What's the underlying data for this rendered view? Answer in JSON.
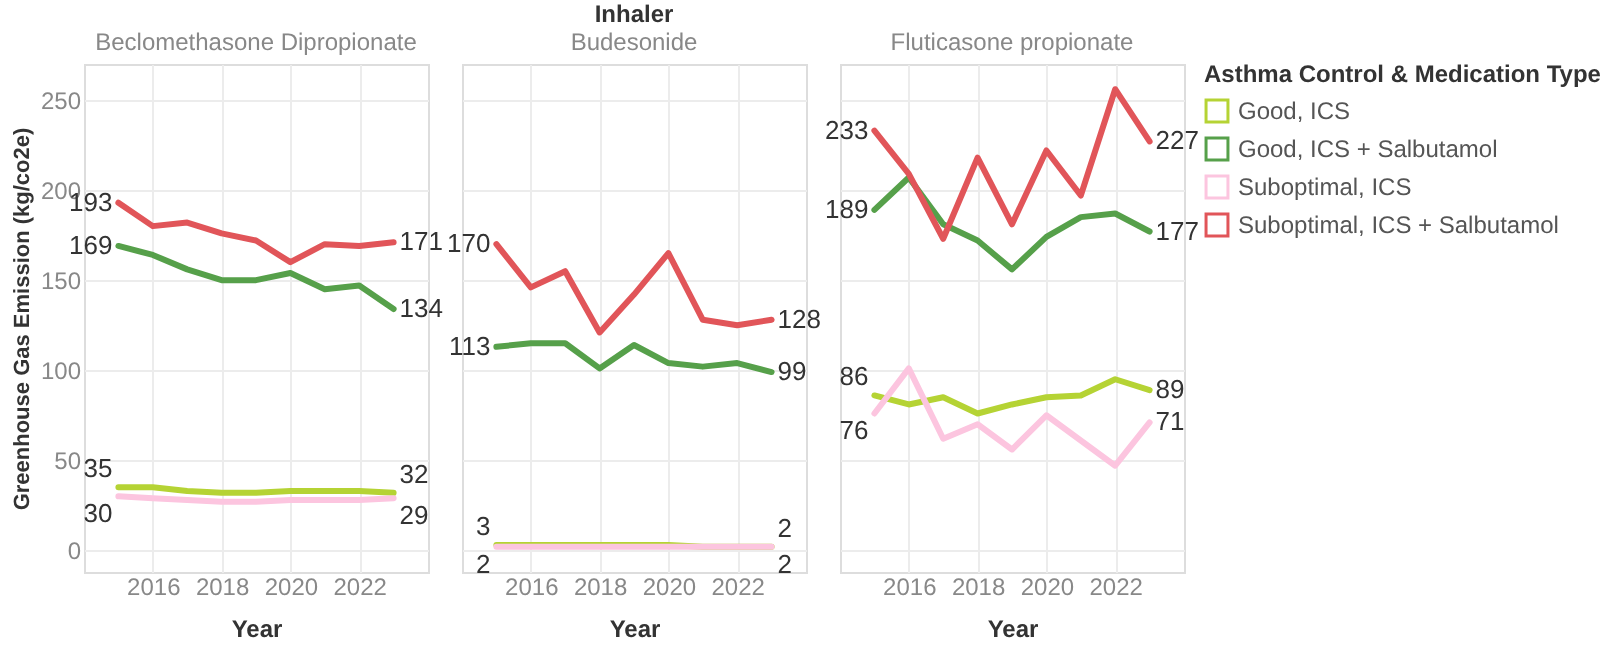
{
  "chart_data": [
    {
      "type": "line",
      "subtitle": "Beclomethasone Dipropionate",
      "xlabel": "Year",
      "ylabel": "Greenhouse Gas Emission (kg/co2e)",
      "x": [
        2015,
        2016,
        2017,
        2018,
        2019,
        2020,
        2021,
        2022,
        2023
      ],
      "xlim": [
        2014,
        2024
      ],
      "xticks": [
        2016,
        2018,
        2020,
        2022
      ],
      "ylim": [
        -12,
        270
      ],
      "yticks": [
        0,
        50,
        100,
        150,
        200,
        250
      ],
      "grid": true,
      "legend": false,
      "series": [
        {
          "color": "#b5d334",
          "values": [
            35,
            35,
            33,
            32,
            32,
            33,
            33,
            33,
            32
          ],
          "value_labels": [
            "35",
            null,
            null,
            null,
            null,
            null,
            null,
            null,
            "32"
          ]
        },
        {
          "color": "#56a04a",
          "values": [
            169,
            164,
            156,
            150,
            150,
            154,
            145,
            147,
            134
          ],
          "value_labels": [
            "169",
            null,
            null,
            null,
            null,
            null,
            null,
            null,
            "134"
          ]
        },
        {
          "color": "#fcc5df",
          "values": [
            30,
            29,
            28,
            27,
            27,
            28,
            28,
            28,
            29
          ],
          "value_labels": [
            "30",
            null,
            null,
            null,
            null,
            null,
            null,
            null,
            "29"
          ]
        },
        {
          "color": "#e15559",
          "values": [
            193,
            180,
            182,
            176,
            172,
            160,
            170,
            169,
            171
          ],
          "value_labels": [
            "193",
            null,
            null,
            null,
            null,
            null,
            null,
            null,
            "171"
          ]
        }
      ]
    },
    {
      "type": "line",
      "title": "Inhaler",
      "subtitle": "Budesonide",
      "xlabel": "Year",
      "x": [
        2015,
        2016,
        2017,
        2018,
        2019,
        2020,
        2021,
        2022,
        2023
      ],
      "xlim": [
        2014,
        2024
      ],
      "xticks": [
        2016,
        2018,
        2020,
        2022
      ],
      "ylim": [
        -12,
        270
      ],
      "yticks": [
        0,
        50,
        100,
        150,
        200,
        250
      ],
      "grid": true,
      "legend": false,
      "tick_labels": "x",
      "series": [
        {
          "color": "#b5d334",
          "values": [
            3,
            3,
            3,
            3,
            3,
            3,
            2,
            2,
            2
          ],
          "value_labels": [
            "3",
            null,
            null,
            null,
            null,
            null,
            null,
            null,
            "2"
          ]
        },
        {
          "color": "#56a04a",
          "values": [
            113,
            115,
            115,
            101,
            114,
            104,
            102,
            104,
            99
          ],
          "value_labels": [
            "113",
            null,
            null,
            null,
            null,
            null,
            null,
            null,
            "99"
          ]
        },
        {
          "color": "#fcc5df",
          "values": [
            2,
            2,
            2,
            2,
            2,
            2,
            2,
            2,
            2
          ],
          "value_labels": [
            "2",
            null,
            null,
            null,
            null,
            null,
            null,
            null,
            "2"
          ]
        },
        {
          "color": "#e15559",
          "values": [
            170,
            146,
            155,
            121,
            142,
            165,
            128,
            125,
            128
          ],
          "value_labels": [
            "170",
            null,
            null,
            null,
            null,
            null,
            null,
            null,
            "128"
          ]
        }
      ]
    },
    {
      "type": "line",
      "subtitle": "Fluticasone propionate",
      "xlabel": "Year",
      "x": [
        2015,
        2016,
        2017,
        2018,
        2019,
        2020,
        2021,
        2022,
        2023
      ],
      "xlim": [
        2014,
        2024
      ],
      "xticks": [
        2016,
        2018,
        2020,
        2022
      ],
      "ylim": [
        -12,
        270
      ],
      "yticks": [
        0,
        50,
        100,
        150,
        200,
        250
      ],
      "grid": true,
      "legend": "right",
      "legend_title": "Asthma Control & Medication Type",
      "tick_labels": "x",
      "series": [
        {
          "name": "Good, ICS",
          "color": "#b5d334",
          "values": [
            86,
            81,
            85,
            76,
            81,
            85,
            86,
            95,
            89
          ],
          "value_labels": [
            "86",
            null,
            null,
            null,
            null,
            null,
            null,
            null,
            "89"
          ]
        },
        {
          "name": "Good, ICS + Salbutamol",
          "color": "#56a04a",
          "values": [
            189,
            207,
            181,
            172,
            156,
            174,
            185,
            187,
            177
          ],
          "value_labels": [
            "189",
            null,
            null,
            null,
            null,
            null,
            null,
            null,
            "177"
          ]
        },
        {
          "name": "Suboptimal, ICS",
          "color": "#fcc5df",
          "values": [
            76,
            101,
            62,
            70,
            56,
            75,
            61,
            47,
            71
          ],
          "value_labels": [
            "76",
            null,
            null,
            null,
            null,
            null,
            null,
            null,
            "71"
          ]
        },
        {
          "name": "Suboptimal, ICS + Salbutamol",
          "color": "#e15559",
          "values": [
            233,
            209,
            173,
            218,
            181,
            222,
            197,
            256,
            227
          ],
          "value_labels": [
            "233",
            null,
            null,
            null,
            null,
            null,
            null,
            null,
            "227"
          ]
        }
      ]
    }
  ]
}
